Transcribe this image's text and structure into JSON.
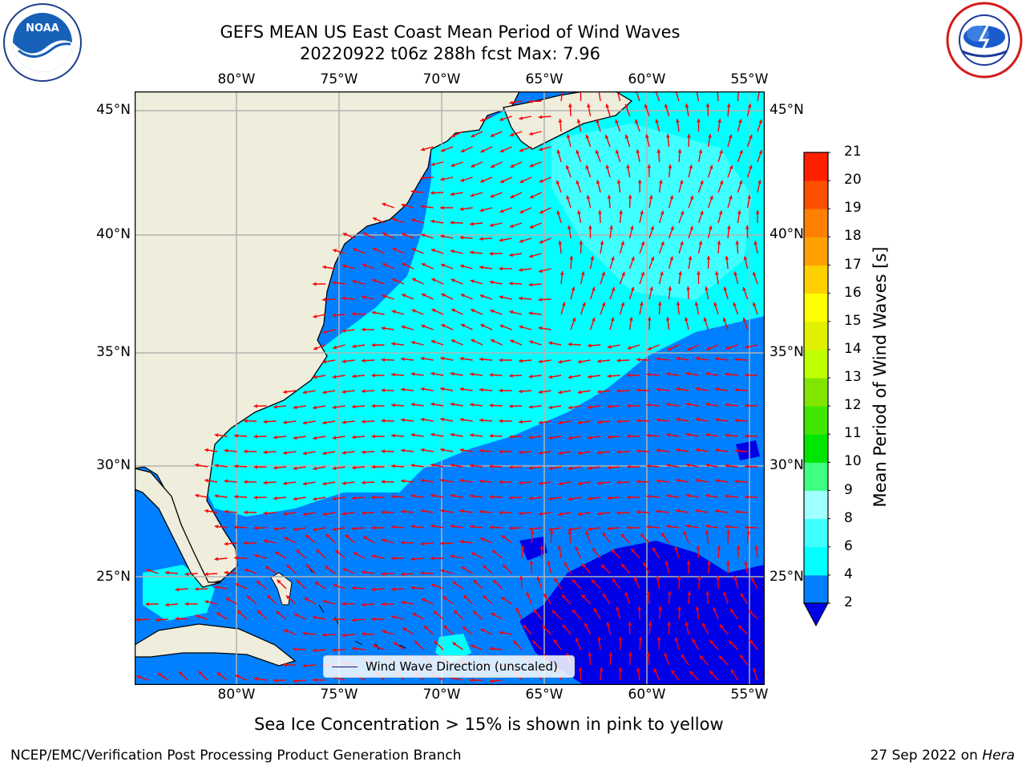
{
  "title": {
    "line1": "GEFS MEAN US East Coast Mean Period of Wind Waves",
    "line2": "20220922 t06z 288h fcst   Max: 7.96"
  },
  "logos": {
    "left": "NOAA",
    "right": "NATIONAL WEATHER SERVICE"
  },
  "map": {
    "lon_labels": [
      "80°W",
      "75°W",
      "70°W",
      "65°W",
      "60°W",
      "55°W"
    ],
    "lat_labels": [
      "45°N",
      "40°N",
      "35°N",
      "30°N",
      "25°N"
    ],
    "legend": "Wind Wave Direction (unscaled)",
    "colors": {
      "land": "#efeddb",
      "coast": "#000000",
      "grid": "#b3b3b3",
      "arrow": "#ff0000"
    }
  },
  "colorbar": {
    "label": "Mean Period of Wind Waves [s]",
    "ticks": [
      "2",
      "4",
      "6",
      "8",
      "9",
      "10",
      "11",
      "12",
      "13",
      "14",
      "15",
      "16",
      "17",
      "18",
      "19",
      "20",
      "21"
    ],
    "colors": [
      "#0000e6",
      "#0080ff",
      "#00ffff",
      "#40ffff",
      "#a0ffff",
      "#40ff80",
      "#00e600",
      "#40e600",
      "#80e600",
      "#c0ff00",
      "#e0f000",
      "#ffff00",
      "#ffd000",
      "#ffa000",
      "#ff8000",
      "#ff5000",
      "#ff2000",
      "#ff0000"
    ]
  },
  "caption": "Sea Ice Concentration > 15% is shown in pink to yellow",
  "footer": {
    "left": "NCEP/EMC/Verification Post Processing Product Generation Branch",
    "date": "27 Sep 2022 on",
    "machine": "Hera"
  }
}
